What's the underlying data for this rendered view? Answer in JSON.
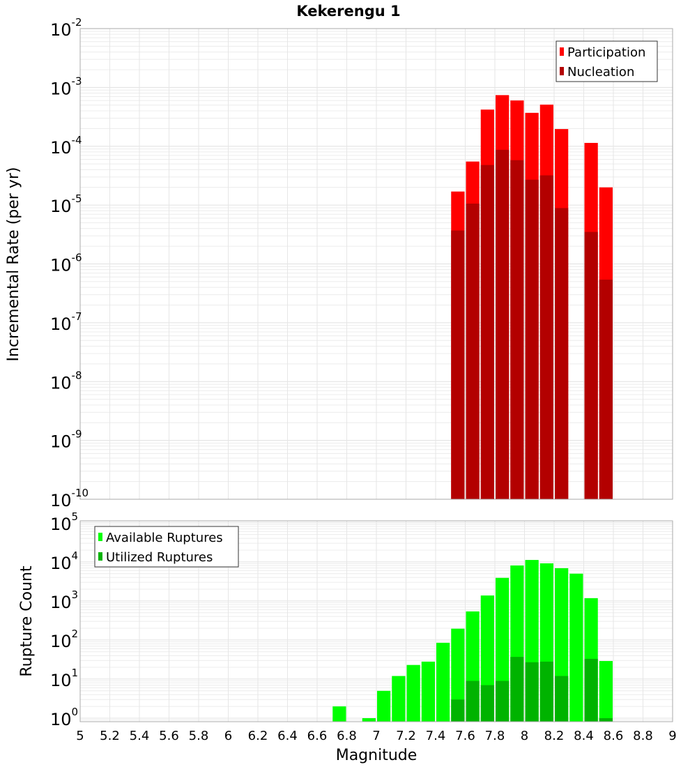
{
  "chart_data": [
    {
      "type": "bar",
      "title": "Kekerengu 1",
      "xlabel": "",
      "ylabel": "Incremental Rate (per yr)",
      "yscale": "log",
      "ylim": [
        1e-10,
        0.01
      ],
      "xlim": [
        5,
        9
      ],
      "bin_width": 0.1,
      "x": [
        7.55,
        7.65,
        7.75,
        7.85,
        7.95,
        8.05,
        8.15,
        8.25,
        8.45,
        8.55
      ],
      "series": [
        {
          "name": "Participation",
          "color": "#ff0000",
          "values": [
            1.7e-05,
            5.5e-05,
            0.00042,
            0.00074,
            0.0006,
            0.00037,
            0.00051,
            0.000196,
            0.000114,
            2e-05
          ]
        },
        {
          "name": "Nucleation",
          "color": "#b30000",
          "values": [
            3.7e-06,
            1.06e-05,
            4.8e-05,
            8.7e-05,
            5.8e-05,
            2.7e-05,
            3.2e-05,
            8.9e-06,
            3.5e-06,
            5.4e-07
          ]
        }
      ],
      "legend": "top-right",
      "grid": true,
      "ytick_exponents": [
        "-2",
        "-3",
        "-4",
        "-5",
        "-6",
        "-7",
        "-8",
        "-9",
        "-10"
      ]
    },
    {
      "type": "bar",
      "title": "",
      "xlabel": "Magnitude",
      "ylabel": "Rupture Count",
      "yscale": "log",
      "ylim_exponents": [
        -0.09,
        5.05
      ],
      "xlim": [
        5,
        9
      ],
      "bin_width": 0.1,
      "x": [
        6.75,
        6.95,
        7.05,
        7.15,
        7.25,
        7.35,
        7.45,
        7.55,
        7.65,
        7.75,
        7.85,
        7.95,
        8.05,
        8.15,
        8.25,
        8.35,
        8.45,
        8.55
      ],
      "series": [
        {
          "name": "Available Ruptures",
          "color": "#00ff00",
          "values": [
            2,
            1,
            5,
            12,
            23,
            28,
            85,
            195,
            540,
            1380,
            3900,
            8100,
            11200,
            9200,
            6900,
            5000,
            1180,
            29
          ]
        },
        {
          "name": "Utilized Ruptures",
          "color": "#00b300",
          "values": [
            0,
            0,
            0,
            0,
            0,
            0,
            0,
            3,
            9,
            7,
            9,
            37,
            27,
            28,
            12,
            0,
            33,
            1
          ]
        }
      ],
      "legend": "top-left",
      "grid": true,
      "ytick_exponents": [
        "5",
        "4",
        "3",
        "2",
        "1",
        "0"
      ],
      "xtick_labels": [
        "5",
        "5.2",
        "5.4",
        "5.6",
        "5.8",
        "6",
        "6.2",
        "6.4",
        "6.6",
        "6.8",
        "7",
        "7.2",
        "7.4",
        "7.6",
        "7.8",
        "8",
        "8.2",
        "8.4",
        "8.6",
        "8.8",
        "9"
      ]
    }
  ],
  "ytick_base": "10"
}
